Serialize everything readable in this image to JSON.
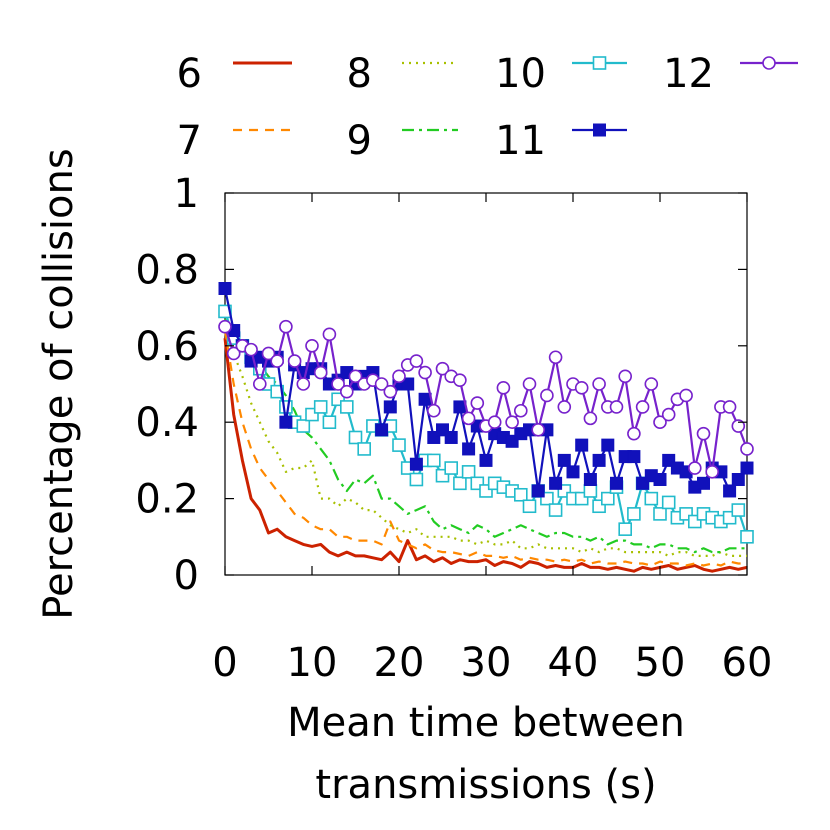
{
  "chart_data": {
    "type": "line",
    "title": "",
    "xlabel_lines": [
      "Mean time between",
      "transmissions (s)"
    ],
    "ylabel": "Percentage of collisions",
    "xlim": [
      0,
      60
    ],
    "ylim": [
      0,
      1
    ],
    "xticks": [
      0,
      10,
      20,
      30,
      40,
      50,
      60
    ],
    "yticks": [
      0,
      0.2,
      0.4,
      0.6,
      0.8,
      1
    ],
    "ytick_labels": [
      "0",
      "0.2",
      "0.4",
      "0.6",
      "0.8",
      "1"
    ],
    "grid": false,
    "legend_position": "top",
    "x": [
      0,
      1,
      2,
      3,
      4,
      5,
      6,
      7,
      8,
      9,
      10,
      11,
      12,
      13,
      14,
      15,
      16,
      17,
      18,
      19,
      20,
      21,
      22,
      23,
      24,
      25,
      26,
      27,
      28,
      29,
      30,
      31,
      32,
      33,
      34,
      35,
      36,
      37,
      38,
      39,
      40,
      41,
      42,
      43,
      44,
      45,
      46,
      47,
      48,
      49,
      50,
      51,
      52,
      53,
      54,
      55,
      56,
      57,
      58,
      59,
      60
    ],
    "series": [
      {
        "name": "6",
        "color": "#cc2200",
        "dash": "",
        "marker": "none",
        "values": [
          0.62,
          0.42,
          0.3,
          0.2,
          0.17,
          0.11,
          0.12,
          0.1,
          0.09,
          0.08,
          0.075,
          0.08,
          0.06,
          0.05,
          0.06,
          0.05,
          0.05,
          0.045,
          0.04,
          0.06,
          0.035,
          0.09,
          0.04,
          0.05,
          0.035,
          0.045,
          0.03,
          0.04,
          0.035,
          0.035,
          0.04,
          0.025,
          0.035,
          0.03,
          0.02,
          0.035,
          0.03,
          0.02,
          0.025,
          0.02,
          0.02,
          0.03,
          0.02,
          0.02,
          0.015,
          0.02,
          0.015,
          0.01,
          0.02,
          0.015,
          0.02,
          0.025,
          0.015,
          0.02,
          0.025,
          0.015,
          0.01,
          0.015,
          0.02,
          0.015,
          0.02
        ]
      },
      {
        "name": "7",
        "color": "#ff8800",
        "dash": "9,7",
        "marker": "none",
        "values": [
          0.64,
          0.5,
          0.4,
          0.33,
          0.28,
          0.25,
          0.22,
          0.19,
          0.16,
          0.15,
          0.13,
          0.12,
          0.12,
          0.1,
          0.1,
          0.09,
          0.09,
          0.09,
          0.08,
          0.14,
          0.09,
          0.08,
          0.07,
          0.08,
          0.065,
          0.06,
          0.06,
          0.055,
          0.05,
          0.06,
          0.05,
          0.05,
          0.045,
          0.05,
          0.04,
          0.045,
          0.04,
          0.04,
          0.035,
          0.04,
          0.035,
          0.04,
          0.03,
          0.035,
          0.03,
          0.03,
          0.035,
          0.03,
          0.03,
          0.025,
          0.035,
          0.03,
          0.03,
          0.025,
          0.03,
          0.025,
          0.03,
          0.025,
          0.035,
          0.03,
          0.03
        ]
      },
      {
        "name": "8",
        "color": "#a8c000",
        "dash": "2,5",
        "marker": "none",
        "values": [
          0.66,
          0.58,
          0.52,
          0.45,
          0.4,
          0.35,
          0.32,
          0.27,
          0.28,
          0.28,
          0.3,
          0.2,
          0.2,
          0.18,
          0.2,
          0.19,
          0.17,
          0.17,
          0.15,
          0.13,
          0.12,
          0.11,
          0.12,
          0.1,
          0.1,
          0.1,
          0.1,
          0.09,
          0.09,
          0.08,
          0.09,
          0.08,
          0.08,
          0.09,
          0.07,
          0.07,
          0.08,
          0.07,
          0.07,
          0.07,
          0.07,
          0.06,
          0.07,
          0.06,
          0.07,
          0.07,
          0.06,
          0.06,
          0.06,
          0.06,
          0.06,
          0.05,
          0.06,
          0.06,
          0.05,
          0.05,
          0.05,
          0.06,
          0.05,
          0.05,
          0.05
        ]
      },
      {
        "name": "9",
        "color": "#22cc22",
        "dash": "12,5,3,5",
        "marker": "none",
        "values": [
          0.67,
          0.62,
          0.58,
          0.6,
          0.55,
          0.52,
          0.5,
          0.47,
          0.43,
          0.38,
          0.36,
          0.33,
          0.3,
          0.25,
          0.22,
          0.25,
          0.24,
          0.26,
          0.2,
          0.2,
          0.18,
          0.16,
          0.17,
          0.18,
          0.14,
          0.12,
          0.13,
          0.12,
          0.11,
          0.13,
          0.12,
          0.1,
          0.11,
          0.12,
          0.13,
          0.12,
          0.11,
          0.1,
          0.11,
          0.11,
          0.1,
          0.1,
          0.09,
          0.1,
          0.08,
          0.09,
          0.09,
          0.08,
          0.08,
          0.07,
          0.08,
          0.08,
          0.07,
          0.07,
          0.06,
          0.07,
          0.06,
          0.06,
          0.07,
          0.07,
          0.07
        ]
      },
      {
        "name": "10",
        "color": "#22bbcc",
        "dash": "",
        "marker": "open-square",
        "values": [
          0.69,
          0.62,
          0.6,
          0.57,
          0.54,
          0.5,
          0.48,
          0.44,
          0.4,
          0.39,
          0.42,
          0.44,
          0.4,
          0.46,
          0.44,
          0.36,
          0.33,
          0.39,
          0.38,
          0.39,
          0.34,
          0.28,
          0.25,
          0.3,
          0.3,
          0.26,
          0.28,
          0.24,
          0.27,
          0.24,
          0.22,
          0.24,
          0.23,
          0.22,
          0.21,
          0.18,
          0.22,
          0.2,
          0.17,
          0.22,
          0.2,
          0.2,
          0.22,
          0.18,
          0.2,
          0.23,
          0.12,
          0.16,
          0.24,
          0.2,
          0.16,
          0.19,
          0.15,
          0.16,
          0.14,
          0.16,
          0.15,
          0.14,
          0.15,
          0.17,
          0.1
        ]
      },
      {
        "name": "11",
        "color": "#1111bb",
        "dash": "",
        "marker": "filled-square",
        "values": [
          0.75,
          0.64,
          0.6,
          0.56,
          0.57,
          0.56,
          0.57,
          0.4,
          0.55,
          0.53,
          0.54,
          0.54,
          0.5,
          0.51,
          0.53,
          0.5,
          0.52,
          0.53,
          0.38,
          0.44,
          0.5,
          0.5,
          0.29,
          0.46,
          0.36,
          0.38,
          0.36,
          0.44,
          0.33,
          0.39,
          0.3,
          0.37,
          0.36,
          0.35,
          0.37,
          0.38,
          0.22,
          0.38,
          0.24,
          0.3,
          0.27,
          0.34,
          0.25,
          0.3,
          0.34,
          0.24,
          0.31,
          0.31,
          0.24,
          0.26,
          0.25,
          0.3,
          0.28,
          0.27,
          0.23,
          0.24,
          0.28,
          0.27,
          0.22,
          0.25,
          0.28
        ]
      },
      {
        "name": "12",
        "color": "#7722cc",
        "dash": "",
        "marker": "open-circle",
        "values": [
          0.65,
          0.58,
          0.6,
          0.59,
          0.5,
          0.58,
          0.56,
          0.65,
          0.56,
          0.5,
          0.6,
          0.53,
          0.63,
          0.5,
          0.48,
          0.52,
          0.5,
          0.51,
          0.5,
          0.48,
          0.52,
          0.55,
          0.56,
          0.53,
          0.43,
          0.54,
          0.52,
          0.51,
          0.41,
          0.45,
          0.39,
          0.4,
          0.49,
          0.4,
          0.43,
          0.5,
          0.38,
          0.47,
          0.57,
          0.44,
          0.5,
          0.49,
          0.41,
          0.5,
          0.44,
          0.44,
          0.52,
          0.37,
          0.44,
          0.5,
          0.4,
          0.42,
          0.46,
          0.47,
          0.28,
          0.37,
          0.27,
          0.44,
          0.44,
          0.39,
          0.33
        ]
      }
    ]
  }
}
